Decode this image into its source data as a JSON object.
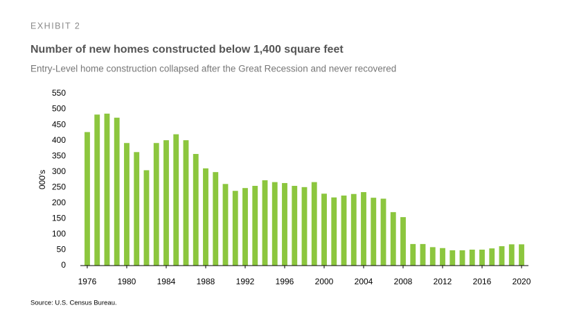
{
  "chart_data": {
    "type": "bar",
    "kicker": "EXHIBIT 2",
    "title": "Number of new homes constructed below 1,400 square feet",
    "subtitle": "Entry-Level home construction collapsed after the Great Recession and never recovered",
    "y_label": "000's",
    "source": "Source: U.S. Census Bureau.",
    "color": "#8cc63e",
    "x": [
      1976,
      1977,
      1978,
      1979,
      1980,
      1981,
      1982,
      1983,
      1984,
      1985,
      1986,
      1987,
      1988,
      1989,
      1990,
      1991,
      1992,
      1993,
      1994,
      1995,
      1996,
      1997,
      1998,
      1999,
      2000,
      2001,
      2002,
      2003,
      2004,
      2005,
      2006,
      2007,
      2008,
      2009,
      2010,
      2011,
      2012,
      2013,
      2014,
      2015,
      2016,
      2017,
      2018,
      2019,
      2020
    ],
    "values": [
      427,
      483,
      486,
      473,
      392,
      363,
      305,
      392,
      401,
      420,
      401,
      357,
      311,
      299,
      261,
      239,
      248,
      255,
      273,
      267,
      264,
      255,
      251,
      267,
      230,
      218,
      224,
      229,
      235,
      217,
      214,
      171,
      155,
      69,
      69,
      59,
      56,
      49,
      49,
      51,
      51,
      55,
      62,
      68,
      68
    ],
    "xlim": [
      1975.3,
      2020.7
    ],
    "xticks": [
      1976,
      1980,
      1984,
      1988,
      1992,
      1996,
      2000,
      2004,
      2008,
      2012,
      2016,
      2020
    ],
    "ylim": [
      0,
      550
    ],
    "yticks": [
      0,
      50,
      100,
      150,
      200,
      250,
      300,
      350,
      400,
      450,
      500,
      550
    ],
    "grid": false
  }
}
